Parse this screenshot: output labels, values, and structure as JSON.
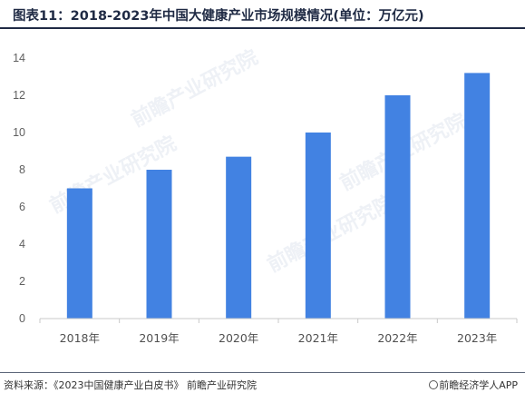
{
  "title": "图表11：2018-2023年中国大健康产业市场规模情况(单位：万亿元)",
  "source": "资料来源：《2023中国健康产业白皮书》 前瞻产业研究院",
  "brand": "前瞻经济学人APP",
  "watermark": "前瞻产业研究院",
  "colors": {
    "bar": "#4282e2",
    "axis": "#c9c9c9",
    "title": "#1f2a44"
  },
  "chart_data": {
    "type": "bar",
    "title": "图表11：2018-2023年中国大健康产业市场规模情况(单位：万亿元)",
    "categories": [
      "2018年",
      "2019年",
      "2020年",
      "2021年",
      "2022年",
      "2023年"
    ],
    "values": [
      7.0,
      8.0,
      8.7,
      10.0,
      12.0,
      13.2
    ],
    "ylim": [
      0,
      14
    ],
    "yticks": [
      0,
      2,
      4,
      6,
      8,
      10,
      12,
      14
    ],
    "xlabel": "",
    "ylabel": "",
    "grid": false,
    "legend": "none"
  }
}
